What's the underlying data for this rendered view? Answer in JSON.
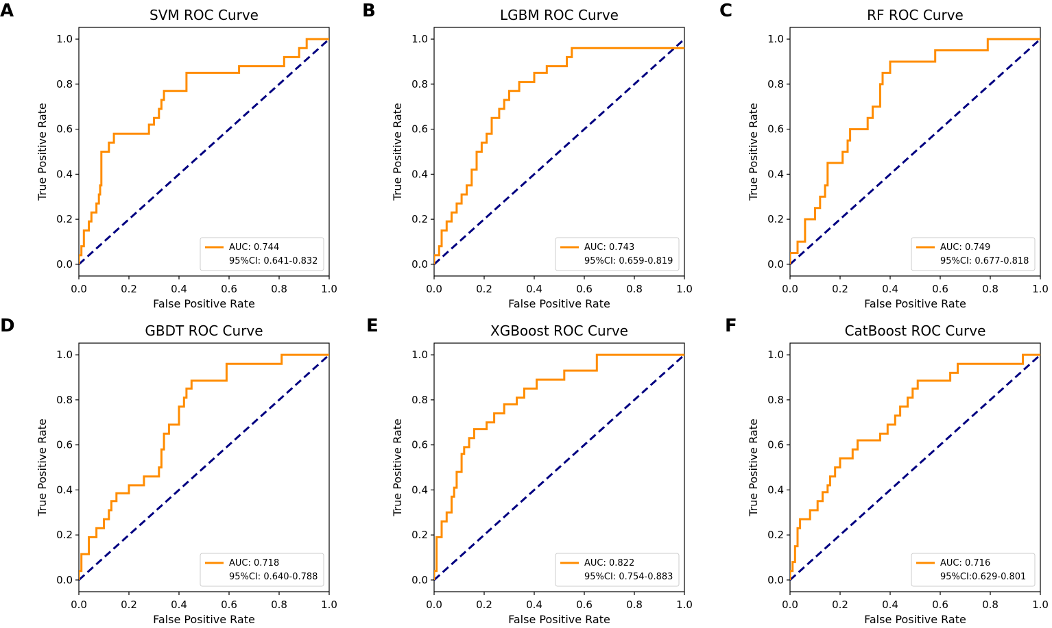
{
  "colors": {
    "roc": "#ff8c00",
    "diagonal": "#000080",
    "axis": "#000000",
    "legend_border": "#cccccc",
    "background": "#ffffff"
  },
  "chart_data": [
    {
      "panel": "A",
      "type": "line",
      "title": "SVM ROC Curve",
      "xlabel": "False Positive Rate",
      "ylabel": "True Positive Rate",
      "xlim": [
        0,
        1
      ],
      "ylim": [
        0,
        1
      ],
      "xticks": [
        "0.0",
        "0.2",
        "0.4",
        "0.6",
        "0.8",
        "1.0"
      ],
      "yticks": [
        "0.0",
        "0.2",
        "0.4",
        "0.6",
        "0.8",
        "1.0"
      ],
      "legend": {
        "auc": "AUC: 0.744",
        "ci": "95%CI: 0.641-0.832",
        "position": "lower-right"
      },
      "series": [
        {
          "name": "ROC",
          "x": [
            0,
            0,
            0.01,
            0.01,
            0.02,
            0.02,
            0.04,
            0.04,
            0.05,
            0.05,
            0.07,
            0.07,
            0.08,
            0.08,
            0.085,
            0.085,
            0.09,
            0.09,
            0.12,
            0.12,
            0.14,
            0.14,
            0.28,
            0.28,
            0.3,
            0.3,
            0.32,
            0.32,
            0.33,
            0.33,
            0.34,
            0.34,
            0.43,
            0.43,
            0.64,
            0.64,
            0.82,
            0.82,
            0.88,
            0.88,
            0.91,
            0.91,
            1.0
          ],
          "y": [
            0,
            0.04,
            0.04,
            0.08,
            0.08,
            0.15,
            0.15,
            0.19,
            0.19,
            0.23,
            0.23,
            0.27,
            0.27,
            0.31,
            0.31,
            0.35,
            0.35,
            0.5,
            0.5,
            0.54,
            0.54,
            0.58,
            0.58,
            0.62,
            0.62,
            0.65,
            0.65,
            0.69,
            0.69,
            0.73,
            0.73,
            0.77,
            0.77,
            0.85,
            0.85,
            0.88,
            0.88,
            0.92,
            0.92,
            0.96,
            0.96,
            1.0,
            1.0
          ]
        },
        {
          "name": "Chance",
          "x": [
            0,
            1
          ],
          "y": [
            0,
            1
          ]
        }
      ]
    },
    {
      "panel": "B",
      "type": "line",
      "title": "LGBM ROC Curve",
      "xlabel": "False Positive Rate",
      "ylabel": "True Positive Rate",
      "xlim": [
        0,
        1
      ],
      "ylim": [
        0,
        1
      ],
      "xticks": [
        "0.0",
        "0.2",
        "0.4",
        "0.6",
        "0.8",
        "1.0"
      ],
      "yticks": [
        "0.0",
        "0.2",
        "0.4",
        "0.6",
        "0.8",
        "1.0"
      ],
      "legend": {
        "auc": "AUC: 0.743",
        "ci": "95%CI: 0.659-0.819",
        "position": "lower-right"
      },
      "series": [
        {
          "name": "ROC",
          "x": [
            0,
            0,
            0.02,
            0.02,
            0.03,
            0.03,
            0.05,
            0.05,
            0.07,
            0.07,
            0.09,
            0.09,
            0.11,
            0.11,
            0.13,
            0.13,
            0.15,
            0.15,
            0.17,
            0.17,
            0.19,
            0.19,
            0.21,
            0.21,
            0.23,
            0.23,
            0.26,
            0.26,
            0.28,
            0.28,
            0.3,
            0.3,
            0.34,
            0.34,
            0.4,
            0.4,
            0.45,
            0.45,
            0.53,
            0.53,
            0.55,
            0.55,
            0.63,
            0.63,
            1.0
          ],
          "y": [
            0,
            0.04,
            0.04,
            0.08,
            0.08,
            0.15,
            0.15,
            0.19,
            0.19,
            0.23,
            0.23,
            0.27,
            0.27,
            0.31,
            0.31,
            0.35,
            0.35,
            0.42,
            0.42,
            0.5,
            0.5,
            0.54,
            0.54,
            0.58,
            0.58,
            0.65,
            0.65,
            0.69,
            0.69,
            0.73,
            0.73,
            0.77,
            0.77,
            0.81,
            0.81,
            0.85,
            0.85,
            0.88,
            0.88,
            0.92,
            0.92,
            0.96,
            0.96,
            0.96,
            0.96
          ]
        },
        {
          "name": "Chance",
          "x": [
            0,
            1
          ],
          "y": [
            0,
            1
          ]
        }
      ]
    },
    {
      "panel": "C",
      "type": "line",
      "title": "RF ROC Curve",
      "xlabel": "False Positive Rate",
      "ylabel": "True Positive Rate",
      "xlim": [
        0,
        1
      ],
      "ylim": [
        0,
        1
      ],
      "xticks": [
        "0.0",
        "0.2",
        "0.4",
        "0.6",
        "0.8",
        "1.0"
      ],
      "yticks": [
        "0.0",
        "0.2",
        "0.4",
        "0.6",
        "0.8",
        "1.0"
      ],
      "legend": {
        "auc": "AUC: 0.749",
        "ci": "95%CI: 0.677-0.818",
        "position": "lower-right"
      },
      "series": [
        {
          "name": "ROC",
          "x": [
            0,
            0,
            0.03,
            0.03,
            0.06,
            0.06,
            0.1,
            0.1,
            0.12,
            0.12,
            0.14,
            0.14,
            0.15,
            0.15,
            0.21,
            0.21,
            0.23,
            0.23,
            0.24,
            0.24,
            0.31,
            0.31,
            0.33,
            0.33,
            0.36,
            0.36,
            0.37,
            0.37,
            0.4,
            0.4,
            0.58,
            0.58,
            0.79,
            0.79,
            1.0
          ],
          "y": [
            0,
            0.05,
            0.05,
            0.1,
            0.1,
            0.2,
            0.2,
            0.25,
            0.25,
            0.3,
            0.3,
            0.35,
            0.35,
            0.45,
            0.45,
            0.5,
            0.5,
            0.55,
            0.55,
            0.6,
            0.6,
            0.65,
            0.65,
            0.7,
            0.7,
            0.8,
            0.8,
            0.85,
            0.85,
            0.9,
            0.9,
            0.95,
            0.95,
            1.0,
            1.0
          ]
        },
        {
          "name": "Chance",
          "x": [
            0,
            1
          ],
          "y": [
            0,
            1
          ]
        }
      ]
    },
    {
      "panel": "D",
      "type": "line",
      "title": "GBDT ROC Curve",
      "xlabel": "False Positive Rate",
      "ylabel": "True Positive Rate",
      "xlim": [
        0,
        1
      ],
      "ylim": [
        0,
        1
      ],
      "xticks": [
        "0.0",
        "0.2",
        "0.4",
        "0.6",
        "0.8",
        "1.0"
      ],
      "yticks": [
        "0.0",
        "0.2",
        "0.4",
        "0.6",
        "0.8",
        "1.0"
      ],
      "legend": {
        "auc": "AUC: 0.718",
        "ci": "95%CI: 0.640-0.788",
        "position": "lower-right"
      },
      "series": [
        {
          "name": "ROC",
          "x": [
            0,
            0,
            0.01,
            0.01,
            0.04,
            0.04,
            0.07,
            0.07,
            0.1,
            0.1,
            0.12,
            0.12,
            0.13,
            0.13,
            0.15,
            0.15,
            0.2,
            0.2,
            0.26,
            0.26,
            0.32,
            0.32,
            0.33,
            0.33,
            0.34,
            0.34,
            0.36,
            0.36,
            0.4,
            0.4,
            0.42,
            0.42,
            0.43,
            0.43,
            0.45,
            0.45,
            0.59,
            0.59,
            0.81,
            0.81,
            1.0
          ],
          "y": [
            0,
            0.04,
            0.04,
            0.115,
            0.115,
            0.19,
            0.19,
            0.23,
            0.23,
            0.27,
            0.27,
            0.31,
            0.31,
            0.35,
            0.35,
            0.385,
            0.385,
            0.42,
            0.42,
            0.46,
            0.46,
            0.5,
            0.5,
            0.58,
            0.58,
            0.65,
            0.65,
            0.69,
            0.69,
            0.77,
            0.77,
            0.81,
            0.81,
            0.85,
            0.85,
            0.885,
            0.885,
            0.96,
            0.96,
            1.0,
            1.0
          ]
        },
        {
          "name": "Chance",
          "x": [
            0,
            1
          ],
          "y": [
            0,
            1
          ]
        }
      ]
    },
    {
      "panel": "E",
      "type": "line",
      "title": "XGBoost ROC Curve",
      "xlabel": "False Positive Rate",
      "ylabel": "True Positive Rate",
      "xlim": [
        0,
        1
      ],
      "ylim": [
        0,
        1
      ],
      "xticks": [
        "0.0",
        "0.2",
        "0.4",
        "0.6",
        "0.8",
        "1.0"
      ],
      "yticks": [
        "0.0",
        "0.2",
        "0.4",
        "0.6",
        "0.8",
        "1.0"
      ],
      "legend": {
        "auc": "AUC: 0.822",
        "ci": "95%CI: 0.754-0.883",
        "position": "lower-right"
      },
      "series": [
        {
          "name": "ROC",
          "x": [
            0,
            0,
            0.01,
            0.01,
            0.03,
            0.03,
            0.05,
            0.05,
            0.07,
            0.07,
            0.08,
            0.08,
            0.09,
            0.09,
            0.11,
            0.11,
            0.12,
            0.12,
            0.14,
            0.14,
            0.16,
            0.16,
            0.21,
            0.21,
            0.24,
            0.24,
            0.28,
            0.28,
            0.33,
            0.33,
            0.36,
            0.36,
            0.41,
            0.41,
            0.52,
            0.52,
            0.65,
            0.65,
            1.0
          ],
          "y": [
            0,
            0.04,
            0.04,
            0.19,
            0.19,
            0.26,
            0.26,
            0.3,
            0.3,
            0.37,
            0.37,
            0.41,
            0.41,
            0.48,
            0.48,
            0.56,
            0.56,
            0.59,
            0.59,
            0.63,
            0.63,
            0.67,
            0.67,
            0.7,
            0.7,
            0.74,
            0.74,
            0.78,
            0.78,
            0.81,
            0.81,
            0.85,
            0.85,
            0.89,
            0.89,
            0.93,
            0.93,
            1.0,
            1.0
          ]
        },
        {
          "name": "Chance",
          "x": [
            0,
            1
          ],
          "y": [
            0,
            1
          ]
        }
      ]
    },
    {
      "panel": "F",
      "type": "line",
      "title": "CatBoost ROC Curve",
      "xlabel": "False Positive Rate",
      "ylabel": "True Positive Rate",
      "xlim": [
        0,
        1
      ],
      "ylim": [
        0,
        1
      ],
      "xticks": [
        "0.0",
        "0.2",
        "0.4",
        "0.6",
        "0.8",
        "1.0"
      ],
      "yticks": [
        "0.0",
        "0.2",
        "0.4",
        "0.6",
        "0.8",
        "1.0"
      ],
      "legend": {
        "auc": "AUC: 0.716",
        "ci": "95%CI:0.629-0.801",
        "position": "lower-right"
      },
      "series": [
        {
          "name": "ROC",
          "x": [
            0,
            0,
            0.01,
            0.01,
            0.02,
            0.02,
            0.03,
            0.03,
            0.04,
            0.04,
            0.08,
            0.08,
            0.11,
            0.11,
            0.13,
            0.13,
            0.15,
            0.15,
            0.16,
            0.16,
            0.18,
            0.18,
            0.2,
            0.2,
            0.25,
            0.25,
            0.27,
            0.27,
            0.36,
            0.36,
            0.39,
            0.39,
            0.42,
            0.42,
            0.44,
            0.44,
            0.47,
            0.47,
            0.49,
            0.49,
            0.51,
            0.51,
            0.64,
            0.64,
            0.67,
            0.67,
            0.93,
            0.93,
            1.0
          ],
          "y": [
            0,
            0.04,
            0.04,
            0.08,
            0.08,
            0.15,
            0.15,
            0.23,
            0.23,
            0.27,
            0.27,
            0.31,
            0.31,
            0.35,
            0.35,
            0.39,
            0.39,
            0.42,
            0.42,
            0.46,
            0.46,
            0.5,
            0.5,
            0.54,
            0.54,
            0.58,
            0.58,
            0.62,
            0.62,
            0.65,
            0.65,
            0.69,
            0.69,
            0.73,
            0.73,
            0.77,
            0.77,
            0.81,
            0.81,
            0.85,
            0.85,
            0.885,
            0.885,
            0.92,
            0.92,
            0.96,
            0.96,
            1.0,
            1.0
          ]
        },
        {
          "name": "Chance",
          "x": [
            0,
            1
          ],
          "y": [
            0,
            1
          ]
        }
      ]
    }
  ]
}
